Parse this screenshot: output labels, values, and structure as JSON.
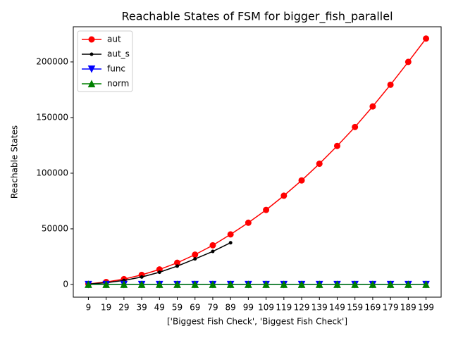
{
  "chart_data": {
    "type": "line",
    "title": "Reachable States of FSM for bigger_fish_parallel",
    "x_label": "['Biggest Fish Check', 'Biggest Fish Check']",
    "y_label": "Reachable States",
    "categories": [
      "9",
      "19",
      "29",
      "39",
      "49",
      "59",
      "69",
      "79",
      "89",
      "99",
      "109",
      "119",
      "129",
      "139",
      "149",
      "159",
      "169",
      "179",
      "189",
      "199"
    ],
    "series": [
      {
        "name": "aut",
        "color": "#ff0000",
        "marker": "o",
        "values": [
          500,
          2200,
          4800,
          8600,
          13500,
          19500,
          26800,
          35200,
          45000,
          55500,
          67000,
          79800,
          93500,
          108500,
          124500,
          141500,
          160000,
          179500,
          200000,
          221000
        ]
      },
      {
        "name": "aut_s",
        "color": "#000000",
        "marker": ".",
        "values": [
          400,
          1600,
          3600,
          6700,
          11000,
          16500,
          23000,
          29700,
          37500,
          null,
          null,
          null,
          null,
          null,
          null,
          null,
          null,
          null,
          null,
          null
        ]
      },
      {
        "name": "func",
        "color": "#0000ff",
        "marker": "v",
        "values": [
          100,
          100,
          100,
          100,
          100,
          100,
          100,
          100,
          100,
          100,
          100,
          100,
          100,
          100,
          100,
          100,
          100,
          100,
          100,
          100
        ]
      },
      {
        "name": "norm",
        "color": "#008000",
        "marker": "^",
        "values": [
          50,
          50,
          50,
          50,
          50,
          50,
          50,
          50,
          50,
          50,
          50,
          50,
          50,
          50,
          50,
          50,
          50,
          50,
          50,
          50
        ]
      }
    ],
    "ylim": [
      -11400,
      231600
    ],
    "yticks": [
      0,
      50000,
      100000,
      150000,
      200000
    ],
    "legend": "upper left"
  }
}
